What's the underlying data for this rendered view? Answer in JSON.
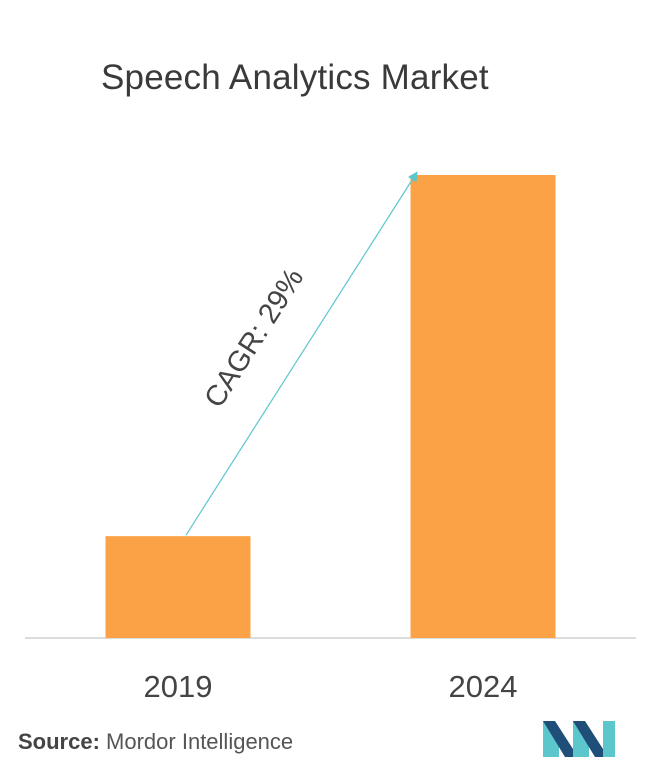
{
  "chart_data": {
    "type": "bar",
    "title": "Speech Analytics Market",
    "categories": [
      "2019",
      "2024"
    ],
    "values": [
      22,
      100
    ],
    "ylim": [
      0,
      100
    ],
    "xlabel": "",
    "ylabel": "",
    "grid": false,
    "bar_color": "#fba247",
    "annotation": {
      "text": "CAGR: 29%",
      "arrow_color": "#5bc6cc",
      "from_category": "2019",
      "to_category": "2024"
    }
  },
  "source": {
    "label": "Source:",
    "text": "Mordor Intelligence"
  },
  "logo": {
    "icon": "mordor-intelligence-logo",
    "colors": [
      "#1f4e79",
      "#5bc6cc"
    ]
  }
}
